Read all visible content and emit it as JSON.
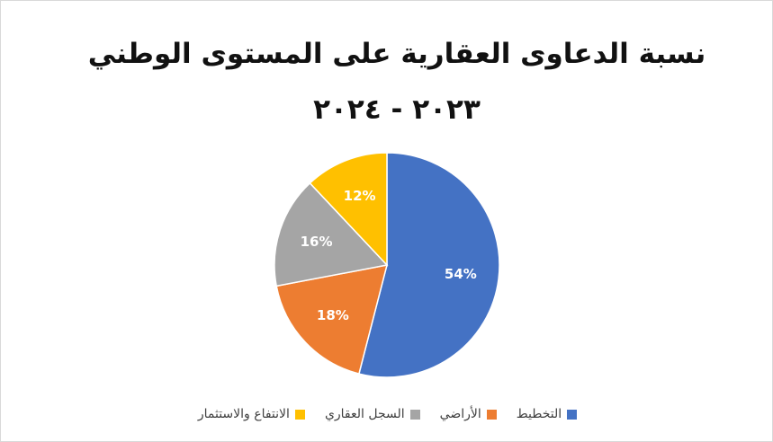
{
  "chart_data": {
    "type": "pie",
    "title": "نسبة الدعاوى العقارية على المستوى الوطني ٢٠٢٣ - ٢٠٢٤",
    "categories": [
      "التخطيط",
      "الأراضي",
      "السجل العقاري",
      "الانتفاع والاستثمار"
    ],
    "values": [
      54,
      18,
      16,
      12
    ],
    "value_labels": [
      "54%",
      "18%",
      "16%",
      "12%"
    ],
    "colors": [
      "#4472c4",
      "#ed7d31",
      "#a5a5a5",
      "#ffc000"
    ],
    "legend": "bottom"
  }
}
